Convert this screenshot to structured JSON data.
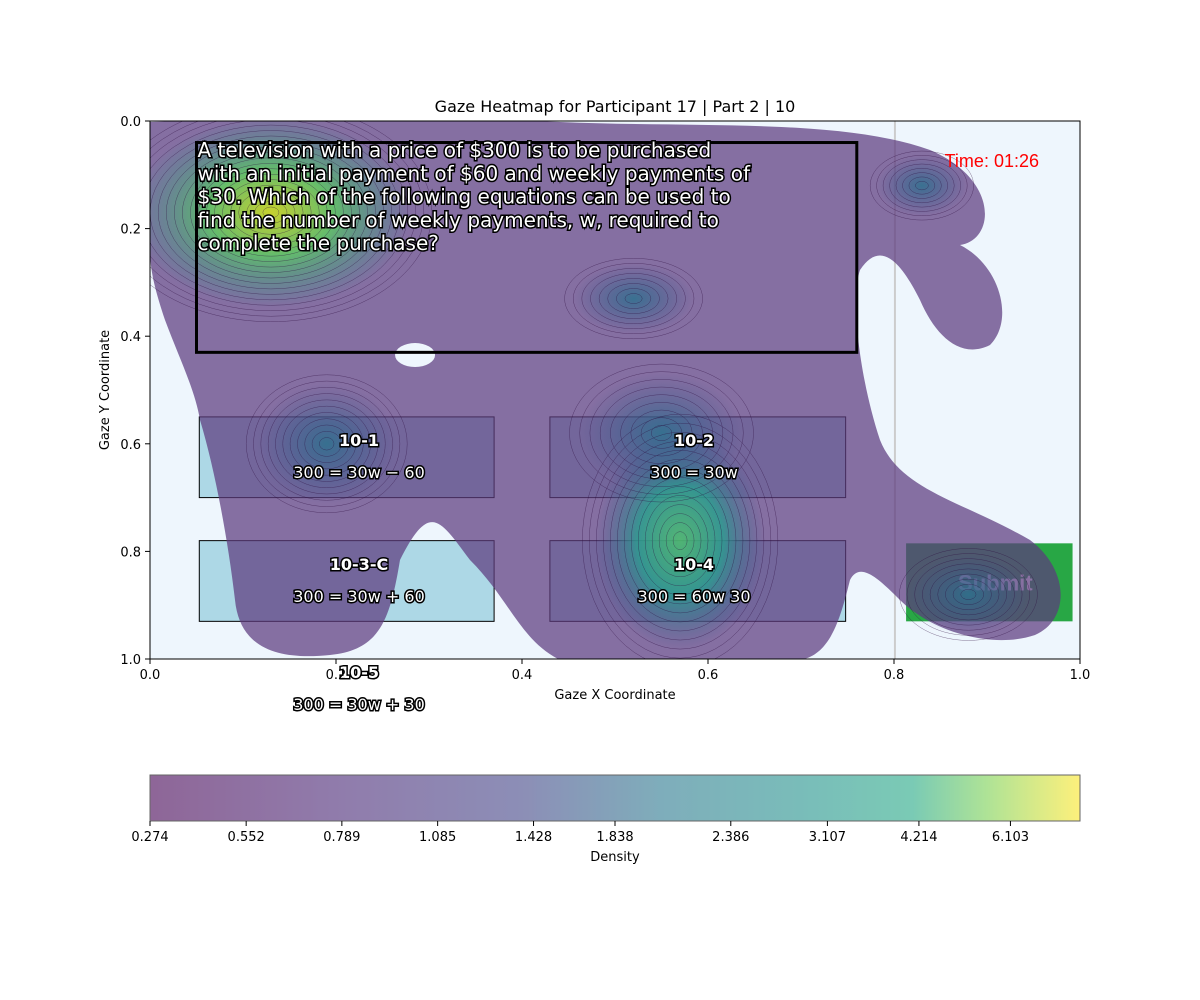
{
  "chart_data": {
    "type": "heatmap",
    "title": "Gaze Heatmap for Participant 17 | Part 2 | 10",
    "xlabel": "Gaze X Coordinate",
    "ylabel": "Gaze Y Coordinate",
    "xlim": [
      0.0,
      1.0
    ],
    "ylim": [
      1.0,
      0.0
    ],
    "x_ticks": [
      "0.0",
      "0.2",
      "0.4",
      "0.6",
      "0.8",
      "1.0"
    ],
    "y_ticks": [
      "0.0",
      "0.2",
      "0.4",
      "0.6",
      "0.8",
      "1.0"
    ],
    "colorbar": {
      "label": "Density",
      "ticks": [
        "0.274",
        "0.552",
        "0.789",
        "1.085",
        "1.428",
        "1.838",
        "2.386",
        "3.107",
        "4.214",
        "6.103"
      ],
      "colormap": "viridis"
    },
    "density_peaks": [
      {
        "x": 0.13,
        "y": 0.17,
        "level": 6.8
      },
      {
        "x": 0.57,
        "y": 0.78,
        "level": 3.8
      },
      {
        "x": 0.19,
        "y": 0.6,
        "level": 2.3
      },
      {
        "x": 0.55,
        "y": 0.58,
        "level": 1.6
      },
      {
        "x": 0.88,
        "y": 0.88,
        "level": 1.3
      },
      {
        "x": 0.83,
        "y": 0.12,
        "level": 0.9
      },
      {
        "x": 0.52,
        "y": 0.33,
        "level": 0.9
      }
    ],
    "question": {
      "lines": [
        "A television with a price of $300 is to be purchased",
        "with an initial payment of $60 and weekly payments of",
        "$30. Which of the following equations can be used to",
        "find the number of weekly payments, w, required to",
        "complete the purchase?"
      ],
      "box": [
        0.05,
        0.04,
        0.76,
        0.43
      ]
    },
    "options": [
      {
        "id": "10-1",
        "equation": "300 = 30w − 60",
        "box": [
          0.053,
          0.55,
          0.37,
          0.7
        ]
      },
      {
        "id": "10-2",
        "equation": "300 = 30w",
        "box": [
          0.43,
          0.55,
          0.748,
          0.7
        ]
      },
      {
        "id": "10-3-C",
        "equation": "300 = 30w + 60",
        "box": [
          0.053,
          0.78,
          0.37,
          0.93
        ]
      },
      {
        "id": "10-4",
        "equation": "300 = 60w 30",
        "box": [
          0.43,
          0.78,
          0.748,
          0.93
        ]
      },
      {
        "id": "10-5",
        "equation": "300 = 30w + 30",
        "box": null
      }
    ],
    "timer": "Time: 01:26",
    "submit_label": "Submit",
    "submit_box": [
      0.813,
      0.785,
      0.992,
      0.93
    ],
    "vline_x": 0.801,
    "colors": {
      "background": "#eef6fd",
      "option_fill": "#add8e6",
      "submit_fill": "#28a745",
      "timer": "#ff0000"
    }
  }
}
